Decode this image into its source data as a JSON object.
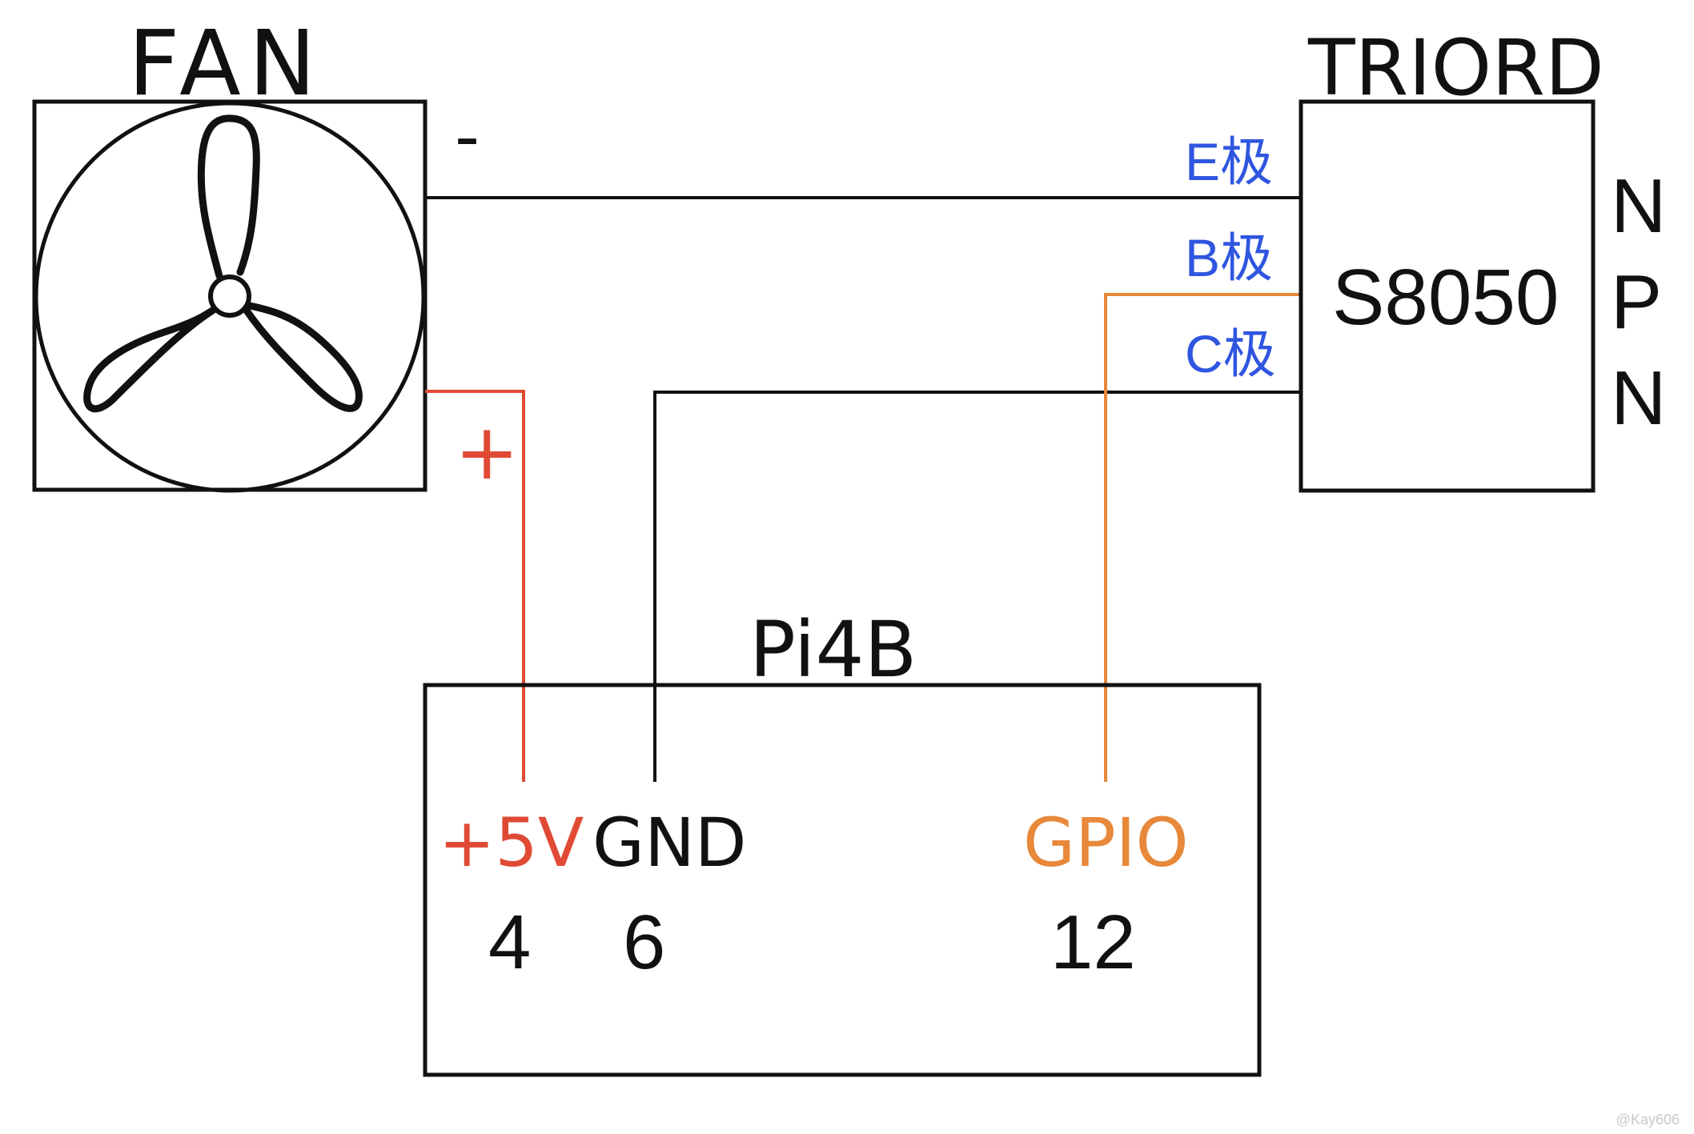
{
  "fan": {
    "title": "FAN",
    "minus_label": "-",
    "plus_label": "+"
  },
  "transistor": {
    "title": "TRIORD",
    "model": "S8050",
    "type_letters": [
      "N",
      "P",
      "N"
    ],
    "pins": {
      "e": "E极",
      "b": "B极",
      "c": "C极"
    }
  },
  "pi": {
    "title": "Pi4B",
    "pins": [
      {
        "name": "+5V",
        "number": "4"
      },
      {
        "name": "GND",
        "number": "6"
      },
      {
        "name": "GPIO",
        "number": "12"
      }
    ]
  },
  "watermark": "@Kay606",
  "colors": {
    "red": "#e04a35",
    "orange": "#e8883a",
    "blue": "#2f56e0",
    "black": "#111111"
  }
}
